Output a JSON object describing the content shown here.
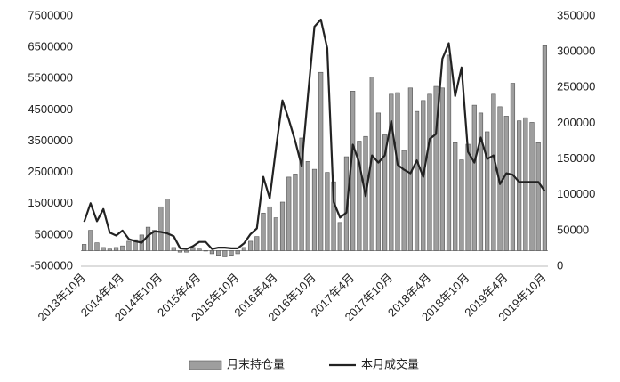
{
  "chart_data": {
    "type": "bar",
    "categories": [
      "2013年10月",
      null,
      null,
      null,
      null,
      null,
      "2014年4月",
      null,
      null,
      null,
      null,
      null,
      "2014年10月",
      null,
      null,
      null,
      null,
      null,
      "2015年4月",
      null,
      null,
      null,
      null,
      null,
      "2015年10月",
      null,
      null,
      null,
      null,
      null,
      "2016年4月",
      null,
      null,
      null,
      null,
      null,
      "2016年10月",
      null,
      null,
      null,
      null,
      null,
      "2017年4月",
      null,
      null,
      null,
      null,
      null,
      "2017年10月",
      null,
      null,
      null,
      null,
      null,
      "2018年4月",
      null,
      null,
      null,
      null,
      null,
      "2018年10月",
      null,
      null,
      null,
      null,
      null,
      "2019年4月",
      null,
      null,
      null,
      null,
      null,
      "2019年10月"
    ],
    "series": [
      {
        "name": "月末持仓量",
        "type": "bar",
        "color": "#9e9e9e",
        "values": [
          200000,
          650000,
          250000,
          100000,
          50000,
          100000,
          150000,
          300000,
          350000,
          500000,
          750000,
          650000,
          1400000,
          1650000,
          100000,
          -50000,
          -50000,
          100000,
          50000,
          0,
          -100000,
          -150000,
          -200000,
          -150000,
          -100000,
          100000,
          300000,
          450000,
          1200000,
          1400000,
          1050000,
          1550000,
          2350000,
          2450000,
          3600000,
          2850000,
          2600000,
          5700000,
          2500000,
          2200000,
          900000,
          3000000,
          5100000,
          3500000,
          3650000,
          5550000,
          4400000,
          3700000,
          5000000,
          5050000,
          3200000,
          5200000,
          4450000,
          4800000,
          5000000,
          5250000,
          5200000,
          6250000,
          3450000,
          2900000,
          3400000,
          4650000,
          4400000,
          3800000,
          5000000,
          4600000,
          4300000,
          5350000,
          4150000,
          4250000,
          4100000,
          3450000,
          6550000
        ]
      },
      {
        "name": "本月成交量",
        "type": "line",
        "axis": "y2",
        "color": "#222222",
        "values": [
          62000,
          88000,
          63000,
          80000,
          47000,
          43000,
          50000,
          38000,
          35000,
          33000,
          43000,
          49000,
          48000,
          46000,
          42000,
          25000,
          24000,
          28000,
          34000,
          34000,
          24000,
          26000,
          26000,
          25000,
          25000,
          32000,
          45000,
          53000,
          125000,
          95000,
          165000,
          232000,
          205000,
          175000,
          140000,
          240000,
          335000,
          345000,
          305000,
          90000,
          68000,
          75000,
          170000,
          145000,
          98000,
          155000,
          145000,
          155000,
          203000,
          142000,
          135000,
          130000,
          148000,
          125000,
          178000,
          185000,
          290000,
          312000,
          238000,
          278000,
          160000,
          145000,
          180000,
          150000,
          155000,
          115000,
          130000,
          128000,
          118000,
          118000,
          118000,
          118000,
          105000
        ]
      }
    ],
    "ylim": [
      -500000,
      7500000
    ],
    "yticks": [
      -500000,
      500000,
      1500000,
      2500000,
      3500000,
      4500000,
      5500000,
      6500000,
      7500000
    ],
    "y2lim": [
      0,
      350000
    ],
    "y2ticks": [
      0,
      50000,
      100000,
      150000,
      200000,
      250000,
      300000,
      350000
    ],
    "grid": false
  }
}
